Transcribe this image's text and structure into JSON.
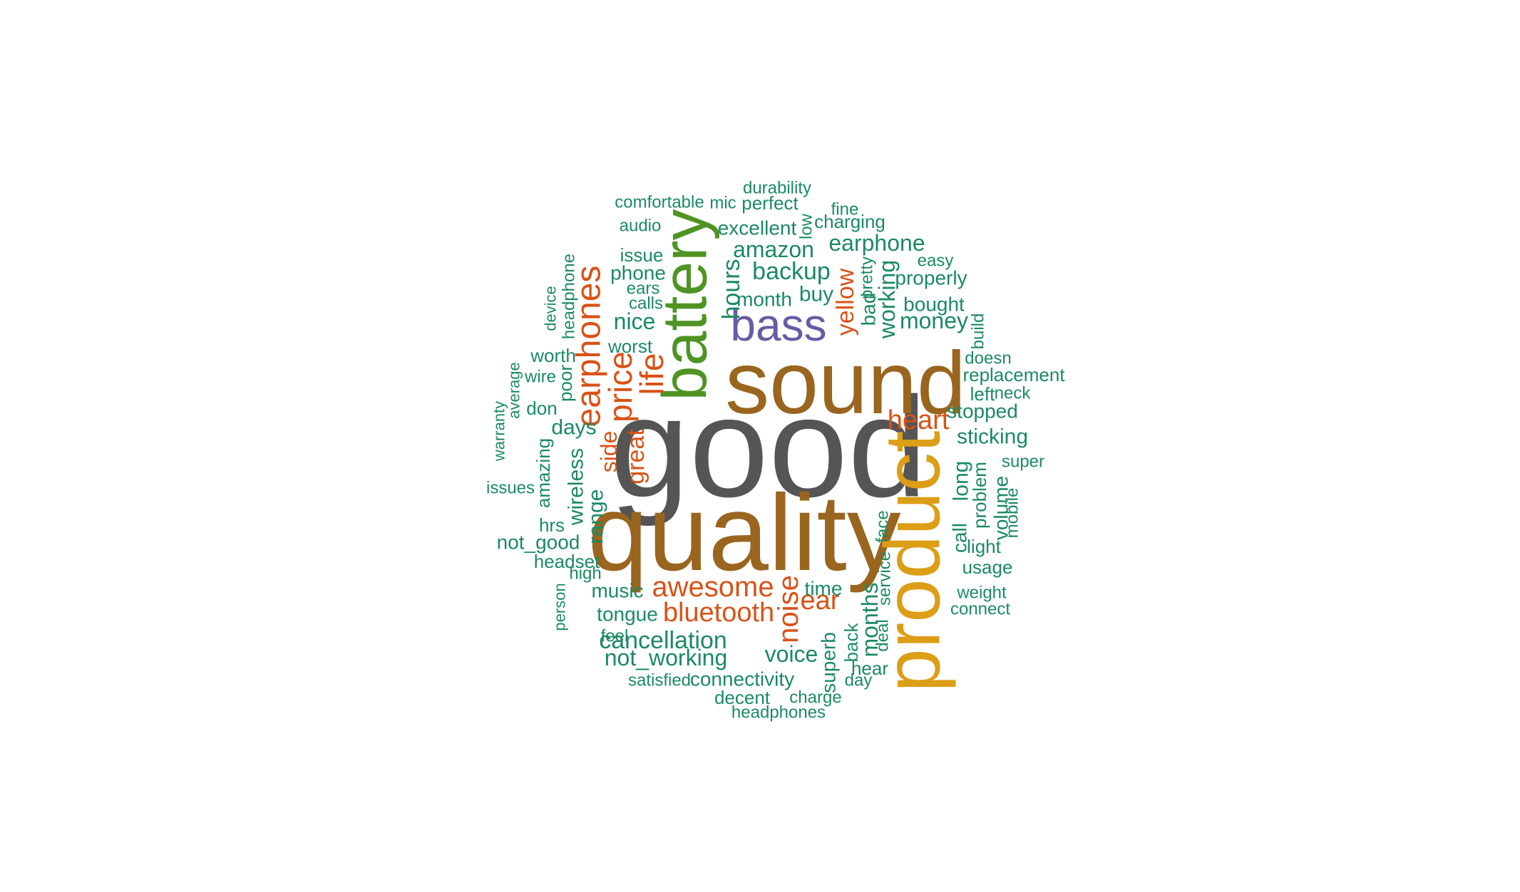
{
  "palette": {
    "gray": "#555555",
    "brown": "#99651f",
    "gold": "#dc9e16",
    "green": "#4f9423",
    "purple": "#6a5aa6",
    "orange": "#d95217",
    "teal": "#1b8a63"
  },
  "words": [
    {
      "text": "good",
      "color": "gray"
    },
    {
      "text": "quality",
      "color": "brown"
    },
    {
      "text": "sound",
      "color": "brown"
    },
    {
      "text": "product",
      "color": "gold"
    },
    {
      "text": "battery",
      "color": "green"
    },
    {
      "text": "bass",
      "color": "purple"
    },
    {
      "text": "earphones",
      "color": "orange"
    },
    {
      "text": "price",
      "color": "orange"
    },
    {
      "text": "life",
      "color": "orange"
    },
    {
      "text": "heart",
      "color": "orange"
    },
    {
      "text": "great",
      "color": "orange"
    },
    {
      "text": "awesome",
      "color": "orange"
    },
    {
      "text": "bluetooth",
      "color": "orange"
    },
    {
      "text": "noise",
      "color": "orange"
    },
    {
      "text": "ear",
      "color": "orange"
    },
    {
      "text": "yellow",
      "color": "orange"
    },
    {
      "text": "side",
      "color": "orange"
    },
    {
      "text": "durability",
      "color": "teal"
    },
    {
      "text": "comfortable",
      "color": "teal"
    },
    {
      "text": "mic",
      "color": "teal"
    },
    {
      "text": "perfect",
      "color": "teal"
    },
    {
      "text": "fine",
      "color": "teal"
    },
    {
      "text": "charging",
      "color": "teal"
    },
    {
      "text": "low",
      "color": "teal"
    },
    {
      "text": "audio",
      "color": "teal"
    },
    {
      "text": "excellent",
      "color": "teal"
    },
    {
      "text": "earphone",
      "color": "teal"
    },
    {
      "text": "amazon",
      "color": "teal"
    },
    {
      "text": "issue",
      "color": "teal"
    },
    {
      "text": "phone",
      "color": "teal"
    },
    {
      "text": "ears",
      "color": "teal"
    },
    {
      "text": "calls",
      "color": "teal"
    },
    {
      "text": "backup",
      "color": "teal"
    },
    {
      "text": "hours",
      "color": "teal"
    },
    {
      "text": "month",
      "color": "teal"
    },
    {
      "text": "buy",
      "color": "teal"
    },
    {
      "text": "easy",
      "color": "teal"
    },
    {
      "text": "properly",
      "color": "teal"
    },
    {
      "text": "pretty",
      "color": "teal"
    },
    {
      "text": "bad",
      "color": "teal"
    },
    {
      "text": "working",
      "color": "teal"
    },
    {
      "text": "bought",
      "color": "teal"
    },
    {
      "text": "money",
      "color": "teal"
    },
    {
      "text": "build",
      "color": "teal"
    },
    {
      "text": "doesn",
      "color": "teal"
    },
    {
      "text": "replacement",
      "color": "teal"
    },
    {
      "text": "left",
      "color": "teal"
    },
    {
      "text": "neck",
      "color": "teal"
    },
    {
      "text": "stopped",
      "color": "teal"
    },
    {
      "text": "sticking",
      "color": "teal"
    },
    {
      "text": "super",
      "color": "teal"
    },
    {
      "text": "long",
      "color": "teal"
    },
    {
      "text": "problem",
      "color": "teal"
    },
    {
      "text": "volume",
      "color": "teal"
    },
    {
      "text": "mobile",
      "color": "teal"
    },
    {
      "text": "call",
      "color": "teal"
    },
    {
      "text": "light",
      "color": "teal"
    },
    {
      "text": "usage",
      "color": "teal"
    },
    {
      "text": "weight",
      "color": "teal"
    },
    {
      "text": "connect",
      "color": "teal"
    },
    {
      "text": "nice",
      "color": "teal"
    },
    {
      "text": "worst",
      "color": "teal"
    },
    {
      "text": "device",
      "color": "teal"
    },
    {
      "text": "headphone",
      "color": "teal"
    },
    {
      "text": "worth",
      "color": "teal"
    },
    {
      "text": "poor",
      "color": "teal"
    },
    {
      "text": "wire",
      "color": "teal"
    },
    {
      "text": "average",
      "color": "teal"
    },
    {
      "text": "don",
      "color": "teal"
    },
    {
      "text": "warranty",
      "color": "teal"
    },
    {
      "text": "days",
      "color": "teal"
    },
    {
      "text": "amazing",
      "color": "teal"
    },
    {
      "text": "wireless",
      "color": "teal"
    },
    {
      "text": "issues",
      "color": "teal"
    },
    {
      "text": "range",
      "color": "teal"
    },
    {
      "text": "hrs",
      "color": "teal"
    },
    {
      "text": "not_good",
      "color": "teal"
    },
    {
      "text": "headset",
      "color": "teal"
    },
    {
      "text": "high",
      "color": "teal"
    },
    {
      "text": "person",
      "color": "teal"
    },
    {
      "text": "music",
      "color": "teal"
    },
    {
      "text": "tongue",
      "color": "teal"
    },
    {
      "text": "feel",
      "color": "teal"
    },
    {
      "text": "cancellation",
      "color": "teal"
    },
    {
      "text": "not_working",
      "color": "teal"
    },
    {
      "text": "satisfied",
      "color": "teal"
    },
    {
      "text": "connectivity",
      "color": "teal"
    },
    {
      "text": "decent",
      "color": "teal"
    },
    {
      "text": "charge",
      "color": "teal"
    },
    {
      "text": "headphones",
      "color": "teal"
    },
    {
      "text": "time",
      "color": "teal"
    },
    {
      "text": "voice",
      "color": "teal"
    },
    {
      "text": "superb",
      "color": "teal"
    },
    {
      "text": "back",
      "color": "teal"
    },
    {
      "text": "months",
      "color": "teal"
    },
    {
      "text": "deal",
      "color": "teal"
    },
    {
      "text": "service",
      "color": "teal"
    },
    {
      "text": "face",
      "color": "teal"
    },
    {
      "text": "hear",
      "color": "teal"
    },
    {
      "text": "day",
      "color": "teal"
    }
  ]
}
